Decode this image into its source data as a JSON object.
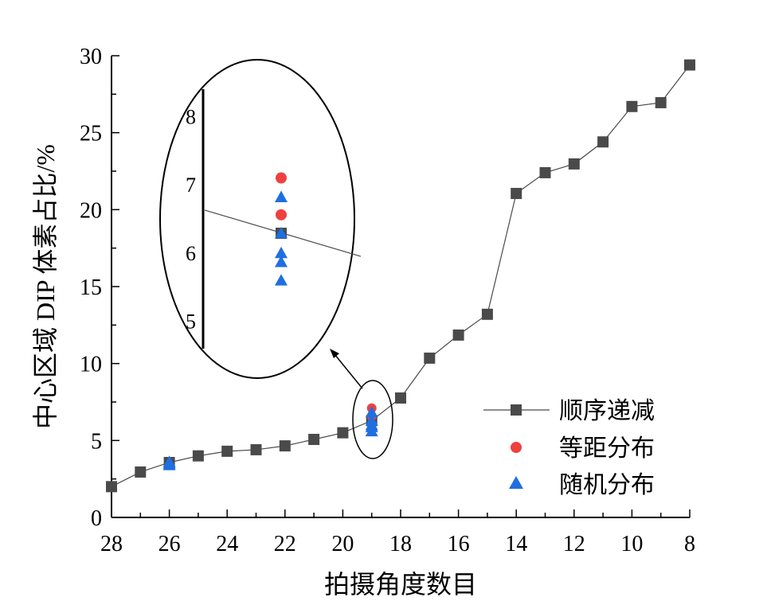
{
  "chart_data": {
    "type": "scatter",
    "title": "",
    "xlabel": "拍摄角度数目",
    "ylabel": "中心区域 DIP 体素占比/%",
    "xlim": [
      28,
      8
    ],
    "ylim": [
      0,
      30
    ],
    "xticks": [
      28,
      26,
      24,
      22,
      20,
      18,
      16,
      14,
      12,
      10,
      8
    ],
    "yticks": [
      0,
      5,
      10,
      15,
      20,
      25,
      30
    ],
    "legend_position": "right",
    "series": [
      {
        "name": "顺序递减",
        "type": "line+marker",
        "marker": "square",
        "color": "#4a4a4a",
        "x": [
          28,
          27,
          26,
          25,
          24,
          23,
          22,
          21,
          20,
          19,
          18,
          17,
          16,
          15,
          14,
          13,
          12,
          11,
          10,
          9,
          8
        ],
        "y": [
          2.0,
          2.95,
          3.57,
          4.0,
          4.3,
          4.4,
          4.65,
          5.07,
          5.5,
          6.29,
          7.76,
          10.35,
          11.85,
          13.2,
          21.05,
          22.4,
          22.97,
          24.4,
          26.7,
          26.95,
          29.4
        ]
      },
      {
        "name": "等距分布",
        "type": "scatter",
        "marker": "circle",
        "color": "#ef4040",
        "x": [
          19,
          19
        ],
        "y": [
          7.1,
          6.56
        ]
      },
      {
        "name": "随机分布",
        "type": "scatter",
        "marker": "triangle",
        "color": "#1f6fe0",
        "x": [
          26,
          26,
          26,
          19,
          19,
          19,
          19,
          19
        ],
        "y": [
          3.4,
          3.5,
          3.6,
          6.82,
          6.29,
          6.0,
          5.87,
          5.6
        ]
      }
    ],
    "inset": {
      "x": 19,
      "ylim": [
        4.6,
        8.4
      ],
      "yticks": [
        5,
        6,
        7,
        8
      ]
    }
  }
}
